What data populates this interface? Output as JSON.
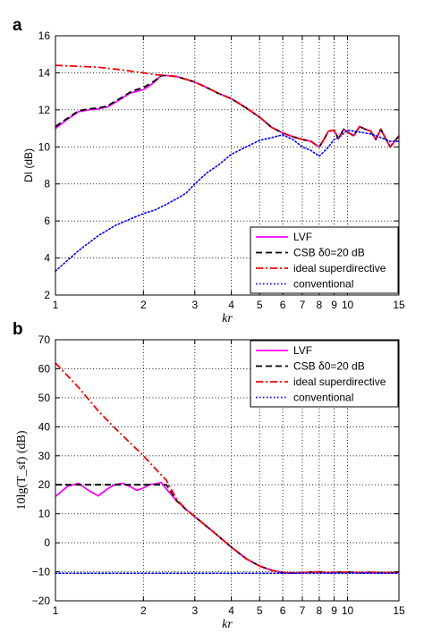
{
  "chart_data": [
    {
      "panel": "a",
      "type": "line",
      "xlabel": "kr",
      "ylabel": "DI (dB)",
      "xscale": "log",
      "xlim": [
        1,
        15
      ],
      "ylim": [
        2,
        16
      ],
      "xticks": [
        1,
        2,
        3,
        4,
        5,
        6,
        7,
        8,
        9,
        10,
        15
      ],
      "xtick_labels": [
        "1",
        "2",
        "3",
        "4",
        "5",
        "6",
        "7",
        "8",
        "9",
        "10",
        "15"
      ],
      "yticks": [
        2,
        4,
        6,
        8,
        10,
        12,
        14,
        16
      ],
      "ytick_labels": [
        "2",
        "4",
        "6",
        "8",
        "10",
        "12",
        "14",
        "16"
      ],
      "grid": true,
      "legend_position": "bottom-right",
      "series": [
        {
          "name": "LVF",
          "color": "#ff00ff",
          "dash": "solid",
          "x": [
            1,
            1.1,
            1.2,
            1.3,
            1.4,
            1.5,
            1.6,
            1.7,
            1.8,
            1.9,
            2,
            2.1,
            2.2,
            2.3,
            2.4,
            2.6,
            2.8,
            3,
            3.3,
            3.6,
            4,
            4.5,
            5,
            5.5,
            6,
            6.5,
            7,
            7.5,
            7.8,
            8,
            8.3,
            8.6,
            9,
            9.3,
            9.7,
            10,
            10.5,
            11,
            11.5,
            12,
            12.5,
            13,
            13.5,
            14,
            14.5,
            15
          ],
          "y": [
            11.0,
            11.5,
            11.9,
            12.0,
            12.05,
            12.15,
            12.4,
            12.65,
            12.9,
            13.0,
            13.1,
            13.3,
            13.55,
            13.85,
            13.85,
            13.8,
            13.65,
            13.5,
            13.2,
            12.9,
            12.6,
            12.1,
            11.6,
            11.05,
            10.75,
            10.55,
            10.4,
            10.3,
            10.1,
            10.0,
            10.4,
            10.85,
            10.9,
            10.45,
            10.95,
            10.8,
            10.6,
            11.1,
            10.95,
            10.85,
            10.4,
            10.95,
            10.45,
            10.0,
            10.3,
            10.6
          ]
        },
        {
          "name": "CSB δ0=20 dB",
          "color": "#000000",
          "dash": "dashed",
          "x": [
            1,
            1.1,
            1.2,
            1.3,
            1.4,
            1.5,
            1.6,
            1.7,
            1.8,
            1.9,
            2,
            2.1,
            2.2,
            2.3,
            2.4,
            2.6,
            2.8,
            3,
            3.3,
            3.6,
            4,
            4.5,
            5,
            5.5,
            6,
            6.5,
            7,
            7.5,
            7.8,
            8,
            8.3,
            8.6,
            9,
            9.3,
            9.7,
            10,
            10.5,
            11,
            11.5,
            12,
            12.5,
            13,
            13.5,
            14,
            14.5,
            15
          ],
          "y": [
            11.1,
            11.55,
            11.95,
            12.05,
            12.1,
            12.2,
            12.45,
            12.7,
            12.95,
            13.1,
            13.2,
            13.4,
            13.6,
            13.85,
            13.85,
            13.8,
            13.65,
            13.5,
            13.2,
            12.9,
            12.6,
            12.1,
            11.6,
            11.05,
            10.75,
            10.55,
            10.4,
            10.3,
            10.1,
            10.0,
            10.4,
            10.85,
            10.9,
            10.45,
            10.95,
            10.8,
            10.6,
            11.1,
            10.95,
            10.85,
            10.4,
            10.95,
            10.45,
            10.0,
            10.3,
            10.6
          ]
        },
        {
          "name": "ideal superdirective",
          "color": "#ff0000",
          "dash": "dashdot",
          "x": [
            1,
            1.2,
            1.4,
            1.6,
            1.8,
            2,
            2.2,
            2.4,
            2.6,
            2.8,
            3,
            3.3,
            3.6,
            4,
            4.5,
            5,
            5.5,
            6,
            6.5,
            7,
            7.5,
            7.8,
            8,
            8.3,
            8.6,
            9,
            9.3,
            9.7,
            10,
            10.5,
            11,
            11.5,
            12,
            12.5,
            13,
            13.5,
            14,
            14.5,
            15
          ],
          "y": [
            14.4,
            14.35,
            14.3,
            14.2,
            14.1,
            14.0,
            13.9,
            13.85,
            13.8,
            13.65,
            13.5,
            13.2,
            12.9,
            12.6,
            12.1,
            11.6,
            11.05,
            10.75,
            10.55,
            10.4,
            10.3,
            10.1,
            10.0,
            10.4,
            10.85,
            10.9,
            10.45,
            10.95,
            10.8,
            10.6,
            11.1,
            10.95,
            10.85,
            10.4,
            10.95,
            10.45,
            10.0,
            10.3,
            10.6
          ]
        },
        {
          "name": "conventional",
          "color": "#0000ff",
          "dash": "dotted",
          "x": [
            1,
            1.2,
            1.4,
            1.6,
            1.8,
            2,
            2.2,
            2.4,
            2.6,
            2.8,
            3,
            3.3,
            3.6,
            4,
            4.5,
            5,
            5.5,
            6,
            6.5,
            7,
            7.5,
            8,
            8.5,
            9,
            9.5,
            10,
            11,
            12,
            13,
            14,
            15
          ],
          "y": [
            3.3,
            4.4,
            5.2,
            5.75,
            6.1,
            6.4,
            6.6,
            6.9,
            7.2,
            7.5,
            8.0,
            8.6,
            9.0,
            9.6,
            10.0,
            10.35,
            10.5,
            10.65,
            10.4,
            10.0,
            9.8,
            9.5,
            9.9,
            10.4,
            10.6,
            10.9,
            10.8,
            10.7,
            10.5,
            10.3,
            10.3
          ]
        }
      ]
    },
    {
      "panel": "b",
      "type": "line",
      "xlabel": "kr",
      "ylabel": "10lg(T_sf) (dB)",
      "xscale": "log",
      "xlim": [
        1,
        15
      ],
      "ylim": [
        -20,
        70
      ],
      "xticks": [
        1,
        2,
        3,
        4,
        5,
        6,
        7,
        8,
        9,
        10,
        15
      ],
      "xtick_labels": [
        "1",
        "2",
        "3",
        "4",
        "5",
        "6",
        "7",
        "8",
        "9",
        "10",
        "15"
      ],
      "yticks": [
        -20,
        -10,
        0,
        10,
        20,
        30,
        40,
        50,
        60,
        70
      ],
      "ytick_labels": [
        "−20",
        "−10",
        "0",
        "10",
        "20",
        "30",
        "40",
        "50",
        "60",
        "70"
      ],
      "grid": true,
      "legend_position": "top-right",
      "series": [
        {
          "name": "LVF",
          "color": "#ff00ff",
          "dash": "solid",
          "x": [
            1,
            1.1,
            1.2,
            1.3,
            1.4,
            1.5,
            1.6,
            1.7,
            1.8,
            1.9,
            2,
            2.1,
            2.2,
            2.3,
            2.4,
            2.6,
            2.8,
            3,
            3.5,
            4,
            4.5,
            5,
            5.5,
            6,
            6.5,
            7,
            7.5,
            8,
            8.5,
            9,
            10,
            11,
            12,
            13,
            14,
            15
          ],
          "y": [
            16,
            19.5,
            20.5,
            18,
            16.2,
            18.5,
            20.1,
            20.5,
            19.4,
            18.1,
            18.9,
            20.1,
            20.3,
            20.8,
            18.5,
            14.5,
            11.5,
            9.0,
            3.5,
            -1.5,
            -5.5,
            -8.0,
            -9.5,
            -10.3,
            -10.4,
            -10.3,
            -10.1,
            -10.0,
            -10.3,
            -10.2,
            -10.1,
            -10.3,
            -10.2,
            -10.3,
            -10.3,
            -10.2
          ]
        },
        {
          "name": "CSB δ0=20 dB",
          "color": "#000000",
          "dash": "dashed",
          "x": [
            1,
            1.2,
            1.4,
            1.6,
            1.8,
            2,
            2.2,
            2.4,
            2.6,
            2.8,
            3,
            3.5,
            4,
            4.5,
            5,
            5.5,
            6,
            6.5,
            7,
            7.5,
            8,
            8.5,
            9,
            10,
            11,
            12,
            13,
            14,
            15
          ],
          "y": [
            20,
            20,
            20,
            20,
            20,
            20,
            20,
            20,
            14.5,
            11.5,
            9.0,
            3.5,
            -1.5,
            -5.5,
            -8.0,
            -9.5,
            -10.3,
            -10.4,
            -10.3,
            -10.1,
            -10.0,
            -10.3,
            -10.2,
            -10.1,
            -10.3,
            -10.2,
            -10.3,
            -10.3,
            -10.2
          ]
        },
        {
          "name": "ideal superdirective",
          "color": "#ff0000",
          "dash": "dashdot",
          "x": [
            1,
            1.2,
            1.4,
            1.6,
            1.8,
            2,
            2.2,
            2.4,
            2.6,
            2.8,
            3,
            3.5,
            4,
            4.5,
            5,
            5.5,
            6,
            6.5,
            7,
            7.5,
            8,
            8.5,
            9,
            10,
            11,
            12,
            13,
            14,
            15
          ],
          "y": [
            62,
            53.5,
            45.5,
            39.5,
            34.5,
            30.0,
            25.5,
            21.5,
            15,
            11.5,
            9.0,
            3.5,
            -1.5,
            -5.5,
            -8.0,
            -9.5,
            -10.3,
            -10.4,
            -10.3,
            -10.1,
            -10.0,
            -10.3,
            -10.2,
            -10.1,
            -10.3,
            -10.2,
            -10.3,
            -10.3,
            -10.2
          ]
        },
        {
          "name": "conventional",
          "color": "#0000ff",
          "dash": "dotted",
          "x": [
            1,
            2,
            3,
            4,
            5,
            6,
            7,
            8,
            9,
            10,
            12,
            15
          ],
          "y": [
            -10.5,
            -10.5,
            -10.5,
            -10.5,
            -10.5,
            -10.5,
            -10.5,
            -10.5,
            -10.5,
            -10.5,
            -10.5,
            -10.5
          ]
        }
      ]
    }
  ]
}
